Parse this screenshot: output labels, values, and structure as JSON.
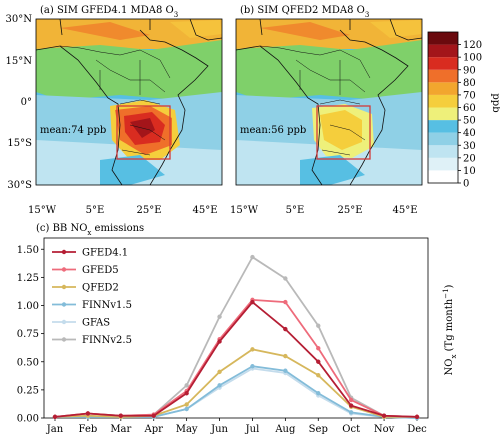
{
  "chart_data": [
    {
      "type": "heatmap",
      "title": "(a) SIM GFED4.1 MDA8 O",
      "title_subscript": "3",
      "annotation": "mean:74 ppb",
      "colors": {
        "box": "#d23b3b"
      }
    },
    {
      "type": "heatmap",
      "title": "(b) SIM QFED2 MDA8 O",
      "title_subscript": "3",
      "annotation": "mean:56 ppb",
      "colors": {
        "box": "#d23b3b"
      }
    },
    {
      "type": "line",
      "title": "(c) BB NO",
      "title_subscript": "x",
      "title_suffix": " emissions",
      "categories": [
        "Jan",
        "Feb",
        "Mar",
        "Apr",
        "May",
        "Jun",
        "Jul",
        "Aug",
        "Sep",
        "Oct",
        "Nov",
        "Dec"
      ],
      "ylabel": "NO",
      "ylabel_subscript": "x",
      "ylabel_suffix": " (Tg month",
      "ylabel_superscript": "−1",
      "ylabel_close": ")",
      "ylim": [
        0,
        1.6
      ],
      "yticks": [
        "0.00",
        "0.25",
        "0.50",
        "0.75",
        "1.00",
        "1.25",
        "1.50"
      ],
      "legend_position": "top-left",
      "series": [
        {
          "name": "GFED4.1",
          "color": "#b51e34",
          "values": [
            0.01,
            0.04,
            0.02,
            0.02,
            0.22,
            0.68,
            1.03,
            0.79,
            0.5,
            0.11,
            0.02,
            0.01
          ]
        },
        {
          "name": "GFED5",
          "color": "#ee6b7b",
          "values": [
            0.01,
            0.04,
            0.02,
            0.03,
            0.24,
            0.7,
            1.05,
            1.03,
            0.62,
            0.16,
            0.02,
            0.01
          ]
        },
        {
          "name": "QFED2",
          "color": "#d6b75c",
          "values": [
            0.01,
            0.02,
            0.01,
            0.02,
            0.12,
            0.41,
            0.61,
            0.55,
            0.38,
            0.1,
            0.01,
            0.01
          ]
        },
        {
          "name": "FINNv1.5",
          "color": "#83bcd9",
          "values": [
            0.01,
            0.01,
            0.01,
            0.01,
            0.08,
            0.29,
            0.46,
            0.42,
            0.22,
            0.05,
            0.01,
            0.0
          ]
        },
        {
          "name": "GFAS",
          "color": "#c4dcec",
          "values": [
            0.01,
            0.01,
            0.01,
            0.01,
            0.08,
            0.27,
            0.44,
            0.4,
            0.2,
            0.04,
            0.01,
            0.0
          ]
        },
        {
          "name": "FINNv2.5",
          "color": "#b9b9b9",
          "values": [
            0.01,
            0.04,
            0.02,
            0.03,
            0.29,
            0.9,
            1.43,
            1.24,
            0.82,
            0.18,
            0.02,
            0.01
          ]
        }
      ]
    }
  ],
  "map_axes": {
    "lat_labels": [
      "30°N",
      "15°N",
      "0°",
      "15°S",
      "30°S"
    ],
    "lon_labels": [
      "15°W",
      "5°E",
      "25°E",
      "45°E"
    ]
  },
  "colorbar": {
    "label": "ppb",
    "ticks": [
      "0",
      "10",
      "20",
      "30",
      "40",
      "50",
      "60",
      "70",
      "80",
      "90",
      "100",
      "120"
    ],
    "colors": [
      "#ffffff",
      "#dff1f7",
      "#bfe4f1",
      "#8fd0e6",
      "#57bfe3",
      "#eef07a",
      "#f5ce3c",
      "#f2a62e",
      "#ef6f2a",
      "#d92c20",
      "#a3151a",
      "#6a0a0e"
    ]
  }
}
